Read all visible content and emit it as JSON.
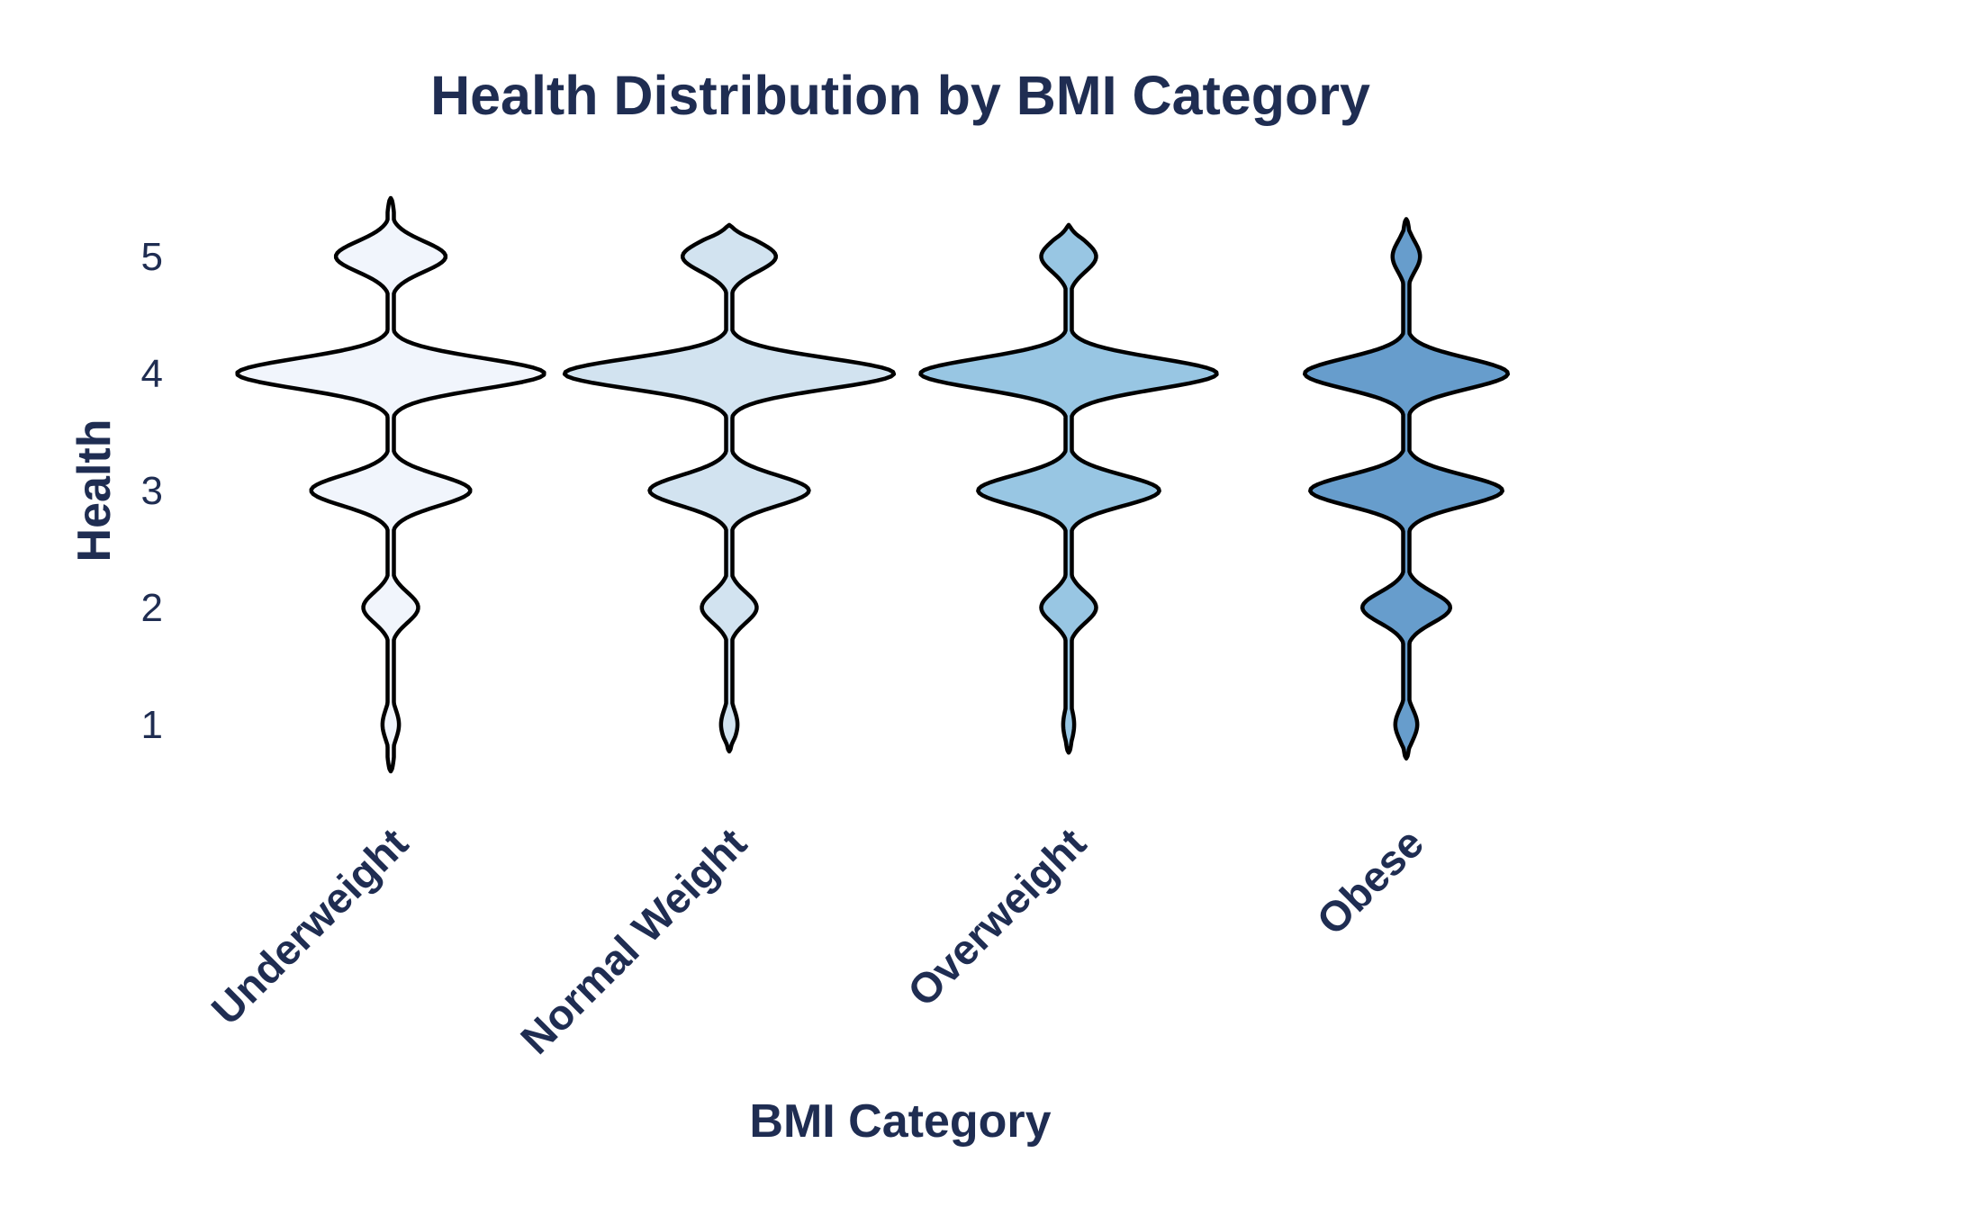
{
  "chart_data": {
    "type": "violin",
    "title": "Health Distribution by BMI Category",
    "xlabel": "BMI Category",
    "ylabel": "Health",
    "categories": [
      "Underweight",
      "Normal Weight",
      "Overweight",
      "Obese"
    ],
    "y_ticks": [
      1,
      2,
      3,
      4,
      5
    ],
    "ylim": [
      0.2,
      5.6
    ],
    "grid": false,
    "legend": "none",
    "series": [
      {
        "category": "Underweight",
        "color": "#f1f5fc",
        "y_range": [
          0.6,
          5.5
        ],
        "density": [
          {
            "y": 1,
            "d": 0.03
          },
          {
            "y": 2,
            "d": 0.1
          },
          {
            "y": 3,
            "d": 0.29
          },
          {
            "y": 4,
            "d": 0.56
          },
          {
            "y": 5,
            "d": 0.2
          }
        ]
      },
      {
        "category": "Normal Weight",
        "color": "#d2e3f0",
        "y_range": [
          0.77,
          5.27
        ],
        "density": [
          {
            "y": 1,
            "d": 0.03
          },
          {
            "y": 2,
            "d": 0.1
          },
          {
            "y": 3,
            "d": 0.29
          },
          {
            "y": 4,
            "d": 0.6
          },
          {
            "y": 5,
            "d": 0.17
          }
        ]
      },
      {
        "category": "Overweight",
        "color": "#98c6e3",
        "y_range": [
          0.76,
          5.27
        ],
        "density": [
          {
            "y": 1,
            "d": 0.02
          },
          {
            "y": 2,
            "d": 0.1
          },
          {
            "y": 3,
            "d": 0.33
          },
          {
            "y": 4,
            "d": 0.54
          },
          {
            "y": 5,
            "d": 0.1
          }
        ]
      },
      {
        "category": "Obese",
        "color": "#679dcc",
        "y_range": [
          0.71,
          5.32
        ],
        "density": [
          {
            "y": 1,
            "d": 0.04
          },
          {
            "y": 2,
            "d": 0.16
          },
          {
            "y": 3,
            "d": 0.35
          },
          {
            "y": 4,
            "d": 0.37
          },
          {
            "y": 5,
            "d": 0.05
          }
        ]
      }
    ]
  }
}
